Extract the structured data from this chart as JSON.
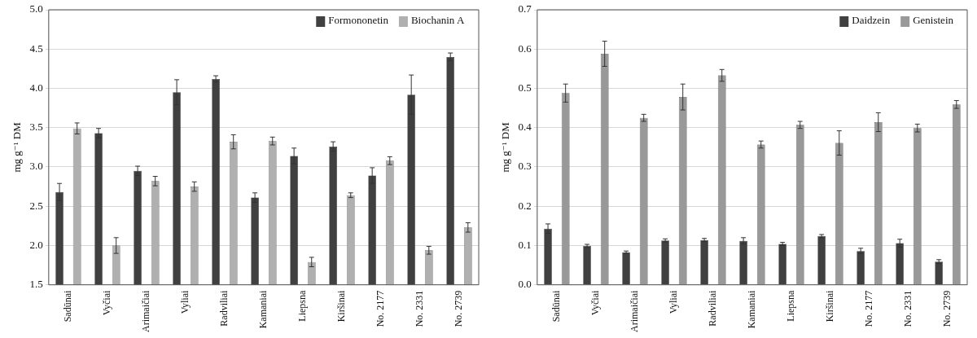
{
  "chart_data": [
    {
      "type": "bar",
      "ylabel": "mg g⁻¹ DM",
      "categories": [
        "Sadūnai",
        "Vyčiai",
        "Arimaičiai",
        "Vyliai",
        "Radviliai",
        "Kamaniai",
        "Liepsna",
        "Kiršinai",
        "No. 2177",
        "No. 2331",
        "No. 2739"
      ],
      "series": [
        {
          "name": "Formononetin",
          "color": "#404040",
          "values": [
            2.68,
            3.43,
            2.95,
            3.95,
            4.12,
            2.61,
            3.14,
            3.26,
            2.89,
            3.92,
            4.4
          ],
          "errors": [
            0.11,
            0.06,
            0.06,
            0.16,
            0.04,
            0.06,
            0.1,
            0.06,
            0.1,
            0.25,
            0.05
          ]
        },
        {
          "name": "Biochanin A",
          "color": "#b0b0b0",
          "values": [
            3.49,
            2.0,
            2.82,
            2.75,
            3.32,
            3.33,
            1.79,
            2.64,
            3.08,
            1.94,
            2.23
          ],
          "errors": [
            0.07,
            0.1,
            0.06,
            0.06,
            0.09,
            0.05,
            0.06,
            0.03,
            0.05,
            0.05,
            0.06
          ]
        }
      ],
      "ylim": [
        1.5,
        5.0
      ],
      "yticks": [
        {
          "value": 1.5,
          "label": "1.5"
        },
        {
          "value": 2,
          "label": "2.0"
        },
        {
          "value": 2.5,
          "label": "2.5"
        },
        {
          "value": 3,
          "label": "3.0"
        },
        {
          "value": 3.5,
          "label": "3.5"
        },
        {
          "value": 4,
          "label": "4.0"
        },
        {
          "value": 4.5,
          "label": "4.5"
        },
        {
          "value": 5,
          "label": "5.0"
        }
      ],
      "grid": "y",
      "legend": "top right"
    },
    {
      "type": "bar",
      "ylabel": "mg g⁻¹ DM",
      "categories": [
        "Sadūnai",
        "Vyčiai",
        "Arimaičiai",
        "Vyliai",
        "Radviliai",
        "Kamaniai",
        "Liepsna",
        "Kiršinai",
        "No. 2177",
        "No. 2331",
        "No. 2739"
      ],
      "series": [
        {
          "name": "Daidzein",
          "color": "#404040",
          "values": [
            0.143,
            0.099,
            0.083,
            0.113,
            0.114,
            0.112,
            0.104,
            0.124,
            0.086,
            0.106,
            0.059
          ],
          "errors": [
            0.012,
            0.004,
            0.003,
            0.004,
            0.004,
            0.008,
            0.004,
            0.004,
            0.007,
            0.01,
            0.005
          ]
        },
        {
          "name": "Genistein",
          "color": "#999999",
          "values": [
            0.488,
            0.588,
            0.425,
            0.478,
            0.533,
            0.357,
            0.407,
            0.361,
            0.414,
            0.399,
            0.459
          ],
          "errors": [
            0.023,
            0.032,
            0.009,
            0.033,
            0.015,
            0.009,
            0.009,
            0.031,
            0.024,
            0.01,
            0.01
          ]
        }
      ],
      "ylim": [
        0,
        0.7
      ],
      "yticks": [
        {
          "value": 0,
          "label": "0.0"
        },
        {
          "value": 0.1,
          "label": "0.1"
        },
        {
          "value": 0.2,
          "label": "0.2"
        },
        {
          "value": 0.3,
          "label": "0.3"
        },
        {
          "value": 0.4,
          "label": "0.4"
        },
        {
          "value": 0.5,
          "label": "0.5"
        },
        {
          "value": 0.6,
          "label": "0.6"
        },
        {
          "value": 0.7,
          "label": "0.7"
        }
      ],
      "grid": "y",
      "legend": "top right"
    }
  ]
}
